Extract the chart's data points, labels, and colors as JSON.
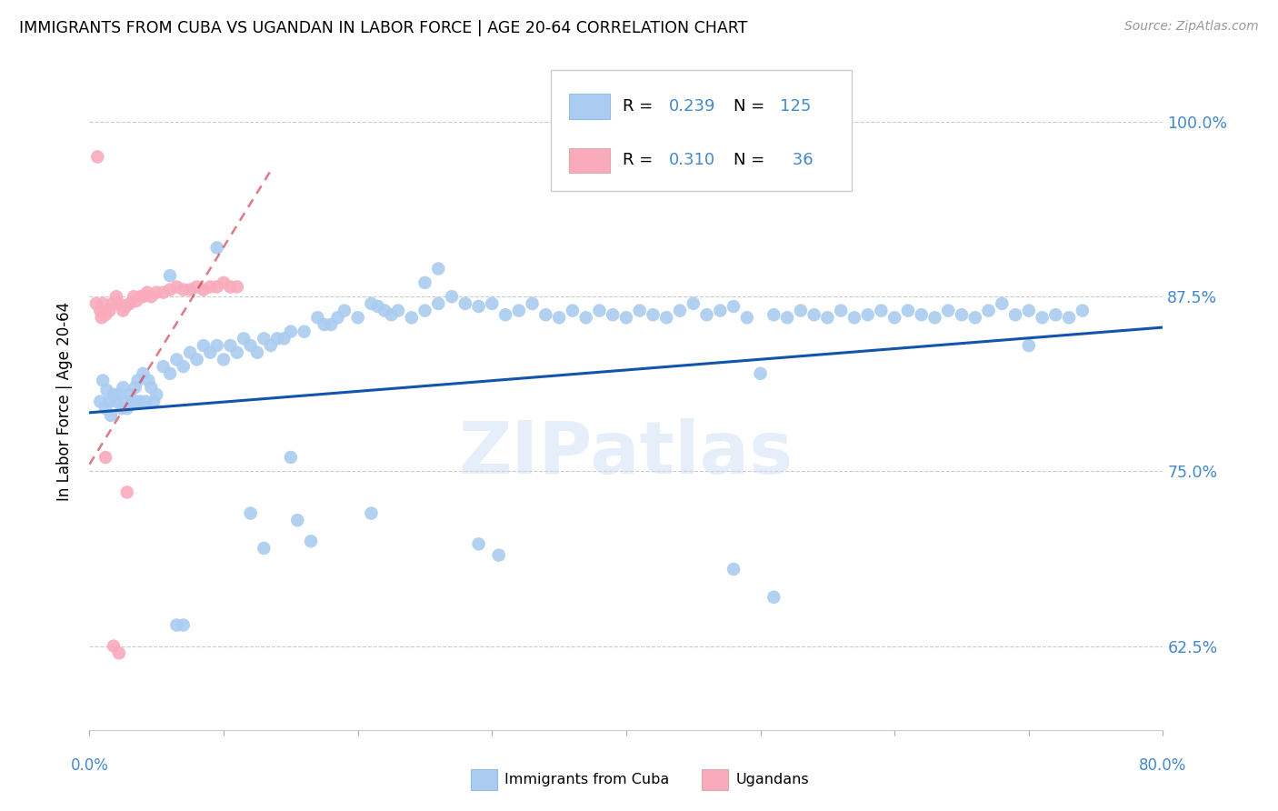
{
  "title": "IMMIGRANTS FROM CUBA VS UGANDAN IN LABOR FORCE | AGE 20-64 CORRELATION CHART",
  "source": "Source: ZipAtlas.com",
  "ylabel": "In Labor Force | Age 20-64",
  "x_min": 0.0,
  "x_max": 0.8,
  "y_min": 0.565,
  "y_max": 1.035,
  "y_ticks": [
    0.625,
    0.75,
    0.875,
    1.0
  ],
  "y_tick_labels": [
    "62.5%",
    "75.0%",
    "87.5%",
    "100.0%"
  ],
  "cuba_R": 0.239,
  "cuba_N": 125,
  "uganda_R": 0.31,
  "uganda_N": 36,
  "cuba_color": "#aaccf0",
  "uganda_color": "#f9aabb",
  "cuba_line_color": "#1155aa",
  "uganda_line_color": "#cc3344",
  "watermark": "ZIPatlas",
  "cuba_line_x": [
    0.0,
    0.8
  ],
  "cuba_line_y": [
    0.792,
    0.853
  ],
  "uganda_line_x": [
    0.0,
    0.135
  ],
  "uganda_line_y": [
    0.755,
    0.965
  ],
  "cuba_scatter_x": [
    0.008,
    0.01,
    0.012,
    0.013,
    0.015,
    0.016,
    0.018,
    0.02,
    0.022,
    0.024,
    0.025,
    0.026,
    0.028,
    0.03,
    0.032,
    0.034,
    0.035,
    0.036,
    0.038,
    0.04,
    0.042,
    0.044,
    0.046,
    0.048,
    0.05,
    0.055,
    0.06,
    0.065,
    0.07,
    0.075,
    0.08,
    0.085,
    0.09,
    0.095,
    0.1,
    0.105,
    0.11,
    0.115,
    0.12,
    0.125,
    0.13,
    0.135,
    0.14,
    0.145,
    0.15,
    0.16,
    0.17,
    0.175,
    0.18,
    0.185,
    0.19,
    0.2,
    0.21,
    0.215,
    0.22,
    0.225,
    0.23,
    0.24,
    0.25,
    0.26,
    0.27,
    0.28,
    0.29,
    0.3,
    0.31,
    0.32,
    0.33,
    0.34,
    0.35,
    0.36,
    0.37,
    0.38,
    0.39,
    0.4,
    0.41,
    0.42,
    0.43,
    0.44,
    0.45,
    0.46,
    0.47,
    0.48,
    0.49,
    0.5,
    0.51,
    0.52,
    0.53,
    0.54,
    0.55,
    0.56,
    0.57,
    0.58,
    0.59,
    0.6,
    0.61,
    0.62,
    0.63,
    0.64,
    0.65,
    0.66,
    0.67,
    0.68,
    0.69,
    0.7,
    0.71,
    0.72,
    0.73,
    0.74,
    0.7,
    0.15,
    0.21,
    0.155,
    0.165,
    0.12,
    0.13,
    0.065,
    0.07,
    0.29,
    0.305,
    0.48,
    0.51,
    0.06,
    0.095,
    0.25,
    0.26
  ],
  "cuba_scatter_y": [
    0.8,
    0.815,
    0.795,
    0.808,
    0.8,
    0.79,
    0.805,
    0.8,
    0.805,
    0.795,
    0.81,
    0.8,
    0.795,
    0.805,
    0.8,
    0.81,
    0.8,
    0.815,
    0.8,
    0.82,
    0.8,
    0.815,
    0.81,
    0.8,
    0.805,
    0.825,
    0.82,
    0.83,
    0.825,
    0.835,
    0.83,
    0.84,
    0.835,
    0.84,
    0.83,
    0.84,
    0.835,
    0.845,
    0.84,
    0.835,
    0.845,
    0.84,
    0.845,
    0.845,
    0.85,
    0.85,
    0.86,
    0.855,
    0.855,
    0.86,
    0.865,
    0.86,
    0.87,
    0.868,
    0.865,
    0.862,
    0.865,
    0.86,
    0.865,
    0.87,
    0.875,
    0.87,
    0.868,
    0.87,
    0.862,
    0.865,
    0.87,
    0.862,
    0.86,
    0.865,
    0.86,
    0.865,
    0.862,
    0.86,
    0.865,
    0.862,
    0.86,
    0.865,
    0.87,
    0.862,
    0.865,
    0.868,
    0.86,
    0.82,
    0.862,
    0.86,
    0.865,
    0.862,
    0.86,
    0.865,
    0.86,
    0.862,
    0.865,
    0.86,
    0.865,
    0.862,
    0.86,
    0.865,
    0.862,
    0.86,
    0.865,
    0.87,
    0.862,
    0.865,
    0.86,
    0.862,
    0.86,
    0.865,
    0.84,
    0.76,
    0.72,
    0.715,
    0.7,
    0.72,
    0.695,
    0.64,
    0.64,
    0.698,
    0.69,
    0.68,
    0.66,
    0.89,
    0.91,
    0.885,
    0.895
  ],
  "uganda_scatter_x": [
    0.005,
    0.008,
    0.01,
    0.012,
    0.015,
    0.017,
    0.02,
    0.022,
    0.025,
    0.027,
    0.03,
    0.033,
    0.035,
    0.038,
    0.04,
    0.043,
    0.046,
    0.05,
    0.055,
    0.06,
    0.065,
    0.07,
    0.075,
    0.08,
    0.085,
    0.09,
    0.095,
    0.1,
    0.105,
    0.11,
    0.006,
    0.009,
    0.012,
    0.018,
    0.022,
    0.028
  ],
  "uganda_scatter_y": [
    0.87,
    0.865,
    0.87,
    0.862,
    0.865,
    0.87,
    0.875,
    0.87,
    0.865,
    0.868,
    0.87,
    0.875,
    0.872,
    0.875,
    0.875,
    0.878,
    0.875,
    0.878,
    0.878,
    0.88,
    0.882,
    0.88,
    0.88,
    0.882,
    0.88,
    0.882,
    0.882,
    0.885,
    0.882,
    0.882,
    0.975,
    0.86,
    0.76,
    0.625,
    0.62,
    0.735
  ]
}
